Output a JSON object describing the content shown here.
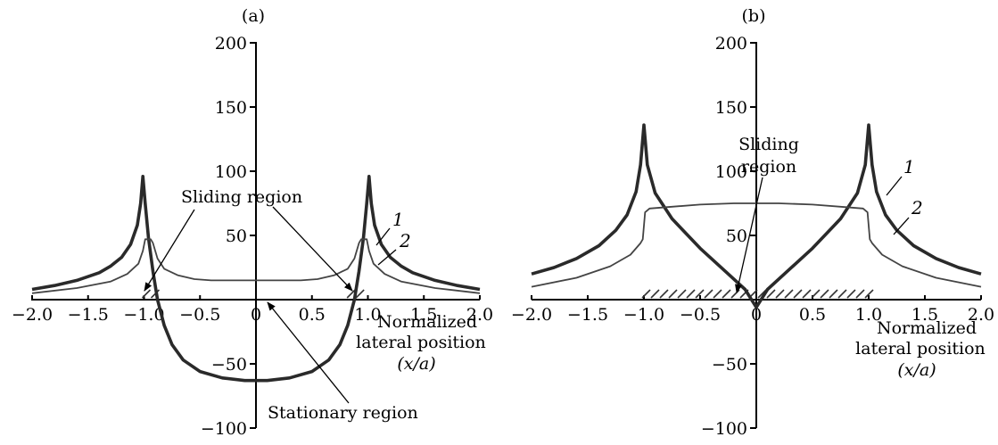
{
  "chart_data": [
    {
      "type": "line",
      "panel_label": "(a)",
      "xlim": [
        -2.0,
        2.0
      ],
      "ylim": [
        -100,
        200
      ],
      "x_ticks": [
        "−2.0",
        "−1.5",
        "−1.0",
        "−0.5",
        "0",
        "0.5",
        "1.0",
        "1.5",
        "2.0"
      ],
      "y_ticks": [
        "200",
        "150",
        "100",
        "50",
        "−50",
        "−100"
      ],
      "xlabel_lines": [
        "Normalized",
        "lateral position",
        "(x/a)"
      ],
      "series": [
        {
          "name": "1",
          "x": [
            -2.0,
            -1.8,
            -1.6,
            -1.4,
            -1.3,
            -1.2,
            -1.12,
            -1.06,
            -1.03,
            -1.01,
            -0.99,
            -0.96,
            -0.92,
            -0.88,
            -0.82,
            -0.75,
            -0.65,
            -0.5,
            -0.3,
            -0.1,
            0.0,
            0.1,
            0.3,
            0.5,
            0.65,
            0.75,
            0.82,
            0.88,
            0.92,
            0.96,
            0.99,
            1.01,
            1.03,
            1.06,
            1.12,
            1.2,
            1.3,
            1.4,
            1.6,
            1.8,
            2.0
          ],
          "y": [
            8,
            11,
            15,
            21,
            26,
            33,
            43,
            58,
            75,
            96,
            75,
            48,
            22,
            0,
            -20,
            -35,
            -47,
            -56,
            -61,
            -63,
            -63,
            -63,
            -61,
            -56,
            -47,
            -35,
            -20,
            0,
            22,
            48,
            75,
            96,
            75,
            58,
            43,
            33,
            26,
            21,
            15,
            11,
            8
          ]
        },
        {
          "name": "2",
          "x": [
            -2.0,
            -1.6,
            -1.3,
            -1.15,
            -1.05,
            -1.01,
            -0.99,
            -0.94,
            -0.92,
            -0.88,
            -0.82,
            -0.7,
            -0.55,
            -0.4,
            0.0,
            0.4,
            0.55,
            0.7,
            0.82,
            0.88,
            0.92,
            0.94,
            0.99,
            1.01,
            1.05,
            1.15,
            1.3,
            1.6,
            2.0
          ],
          "y": [
            5,
            9,
            14,
            20,
            28,
            38,
            47,
            47,
            44,
            32,
            24,
            19,
            16,
            15,
            15,
            15,
            16,
            19,
            24,
            32,
            44,
            47,
            47,
            38,
            28,
            20,
            14,
            9,
            5
          ]
        }
      ],
      "annotations": [
        "Sliding region",
        "Stationary region"
      ],
      "hatched_x": [
        [
          -1.0,
          -0.83
        ],
        [
          0.83,
          1.0
        ]
      ]
    },
    {
      "type": "line",
      "panel_label": "(b)",
      "xlim": [
        -2.0,
        2.0
      ],
      "ylim": [
        -100,
        200
      ],
      "x_ticks": [
        "−2.0",
        "−1.5",
        "−1.0",
        "−0.5",
        "0",
        "0.5",
        "1.0",
        "1.5",
        "2.0"
      ],
      "y_ticks": [
        "200",
        "150",
        "100",
        "50",
        "−50",
        "−100"
      ],
      "xlabel_lines": [
        "Normalized",
        "lateral position",
        "(x/a)"
      ],
      "series": [
        {
          "name": "1",
          "x": [
            -2.0,
            -1.8,
            -1.6,
            -1.4,
            -1.25,
            -1.15,
            -1.07,
            -1.03,
            -1.0,
            -0.97,
            -0.9,
            -0.75,
            -0.5,
            -0.25,
            -0.1,
            0.0,
            0.1,
            0.25,
            0.5,
            0.75,
            0.9,
            0.97,
            1.0,
            1.03,
            1.07,
            1.15,
            1.25,
            1.4,
            1.6,
            1.8,
            2.0
          ],
          "y": [
            20,
            25,
            32,
            42,
            54,
            66,
            84,
            105,
            136,
            105,
            83,
            63,
            40,
            20,
            8,
            -6,
            8,
            20,
            40,
            63,
            83,
            105,
            136,
            105,
            84,
            66,
            54,
            42,
            32,
            25,
            20
          ]
        },
        {
          "name": "2",
          "x": [
            -2.0,
            -1.6,
            -1.3,
            -1.12,
            -1.03,
            -1.01,
            -0.99,
            -0.95,
            -0.8,
            -0.5,
            -0.2,
            0.0,
            0.2,
            0.5,
            0.8,
            0.95,
            0.99,
            1.01,
            1.03,
            1.12,
            1.3,
            1.6,
            2.0
          ],
          "y": [
            10,
            17,
            26,
            35,
            44,
            47,
            68,
            71,
            72,
            74,
            75,
            75,
            75,
            74,
            72,
            71,
            68,
            47,
            44,
            35,
            26,
            17,
            10
          ]
        }
      ],
      "annotations": [
        "Sliding",
        "region"
      ],
      "hatched_x": [
        [
          -1.0,
          1.0
        ]
      ]
    }
  ]
}
